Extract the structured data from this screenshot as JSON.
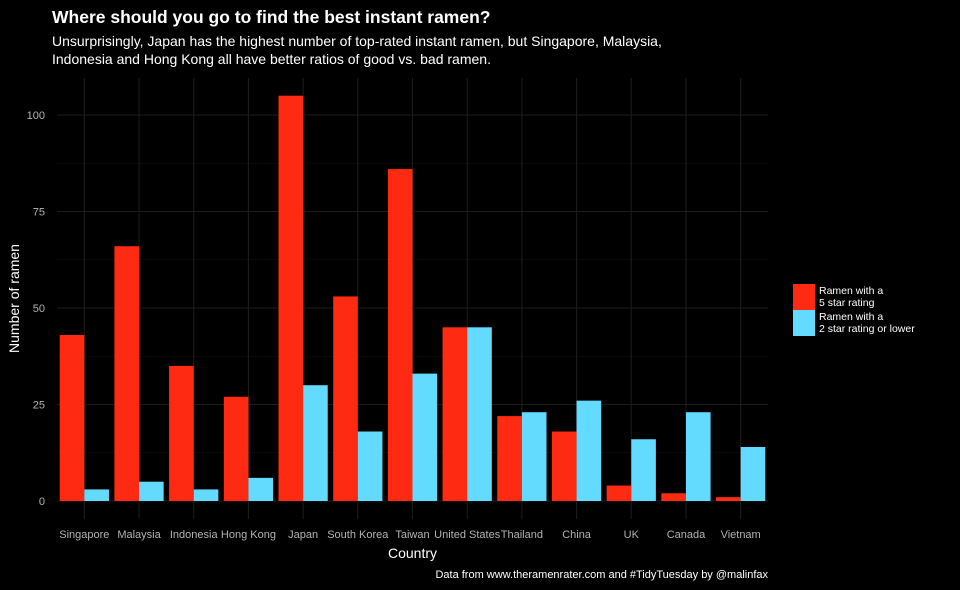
{
  "colors": {
    "background": "#000000",
    "five_star": "#ff2a12",
    "two_star": "#63daff",
    "grid": "#1c1c1c",
    "tick_text": "#b3b3b3",
    "label_text": "#ffffff"
  },
  "header": {
    "title": "Where should you go to find the best instant ramen?",
    "subtitle": "Unsurprisingly, Japan has the highest number of top-rated instant ramen, but Singapore, Malaysia, Indonesia and Hong Kong all have better ratios of good vs. bad ramen."
  },
  "caption": "Data from www.theramenrater.com and #TidyTuesday by @malinfax",
  "legend": {
    "items": [
      {
        "label": "Ramen with a\n5 star rating",
        "color_key": "five_star"
      },
      {
        "label": "Ramen with a\n2 star rating or lower",
        "color_key": "two_star"
      }
    ]
  },
  "chart_data": {
    "type": "bar",
    "title": "Where should you go to find the best instant ramen?",
    "xlabel": "Country",
    "ylabel": "Number of ramen",
    "categories": [
      "Singapore",
      "Malaysia",
      "Indonesia",
      "Hong Kong",
      "Japan",
      "South Korea",
      "Taiwan",
      "United States",
      "Thailand",
      "China",
      "UK",
      "Canada",
      "Vietnam"
    ],
    "series": [
      {
        "name": "Ramen with a 5 star rating",
        "values": [
          43,
          66,
          35,
          27,
          105,
          53,
          86,
          45,
          22,
          18,
          4,
          2,
          1
        ]
      },
      {
        "name": "Ramen with a 2 star rating or lower",
        "values": [
          3,
          5,
          3,
          6,
          30,
          18,
          33,
          45,
          23,
          26,
          16,
          23,
          14
        ]
      }
    ],
    "ylim": [
      0,
      110
    ],
    "yticks": [
      0,
      25,
      50,
      75,
      100
    ],
    "grid": true,
    "legend_position": "right"
  }
}
